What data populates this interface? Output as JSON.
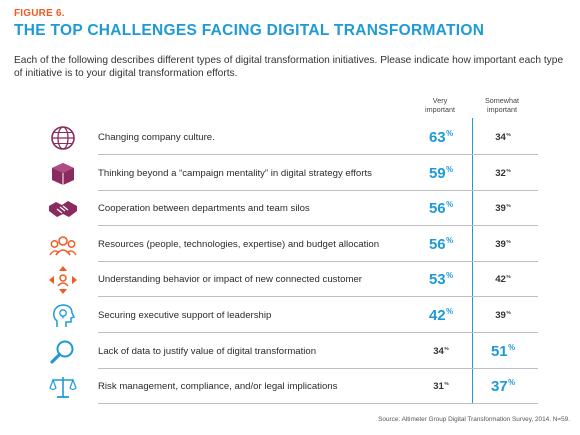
{
  "figure_label": "FIGURE 6.",
  "title": "THE TOP CHALLENGES FACING DIGITAL TRANSFORMATION",
  "subtitle": "Each of the following describes different types of digital transformation initiatives. Please indicate how important each type of initiative is to your digital transformation efforts.",
  "columns": {
    "very_line1": "Very",
    "very_line2": "important",
    "somewhat_line1": "Somewhat",
    "somewhat_line2": "important"
  },
  "source": "Source: Altimeter Group Digital Transformation Survey, 2014. N=59.",
  "colors": {
    "accent_blue": "#1e9ad6",
    "accent_orange": "#f15a22",
    "icon_purple": "#8a2a5e"
  },
  "chart_data": {
    "type": "table",
    "title": "THE TOP CHALLENGES FACING DIGITAL TRANSFORMATION",
    "categories": [
      "Changing company culture.",
      "Thinking beyond a “campaign mentality” in digital strategy efforts",
      "Cooperation between departments and team silos",
      "Resources (people, technologies, expertise) and budget allocation",
      "Understanding behavior or impact of new connected customer",
      "Securing executive support of leadership",
      "Lack of data to justify value of digital transformation",
      "Risk management, compliance, and/or legal implications"
    ],
    "series": [
      {
        "name": "Very important",
        "values": [
          63,
          59,
          56,
          56,
          53,
          42,
          34,
          31
        ]
      },
      {
        "name": "Somewhat important",
        "values": [
          34,
          32,
          39,
          39,
          42,
          39,
          51,
          37
        ]
      }
    ],
    "unit": "%",
    "highlight": [
      "very",
      "very",
      "very",
      "very",
      "very",
      "very",
      "somewhat",
      "somewhat"
    ],
    "icons": [
      "globe-icon",
      "box-icon",
      "handshake-icon",
      "people-group-icon",
      "customer-arrows-icon",
      "lightbulb-head-icon",
      "magnifier-icon",
      "scales-icon"
    ]
  }
}
